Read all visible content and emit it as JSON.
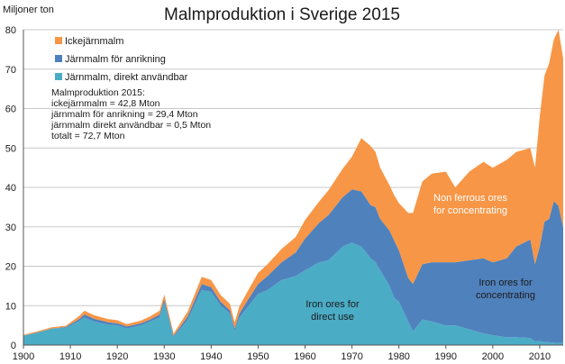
{
  "colors": {
    "non_ferrous": "#F79646",
    "iron_concentrating": "#4F81BD",
    "iron_direct": "#4BACC6"
  },
  "summary_lines": [
    "Malmproduktion 2015:",
    "ickejärnmalm = 42,8 Mton",
    "järnmalm för anrikning = 29,4 Mton",
    "järnmalm direkt användbar = 0,5 Mton",
    "totalt = 72,7 Mton"
  ],
  "chart_data": {
    "type": "area",
    "stacked": true,
    "title": "Malmproduktion i Sverige 2015",
    "ylabel": "Miljoner ton",
    "xlabel": "",
    "xlim": [
      1900,
      2015
    ],
    "ylim": [
      0,
      80
    ],
    "x_ticks": [
      1900,
      1910,
      1920,
      1930,
      1940,
      1950,
      1960,
      1970,
      1980,
      1990,
      2000,
      2010
    ],
    "y_ticks": [
      0,
      10,
      20,
      30,
      40,
      50,
      60,
      70,
      80
    ],
    "grid": "horizontal",
    "legend_position": "top-left",
    "x": [
      1900,
      1903,
      1906,
      1909,
      1912,
      1913,
      1915,
      1918,
      1920,
      1922,
      1925,
      1927,
      1929,
      1930,
      1932,
      1935,
      1938,
      1940,
      1942,
      1944,
      1945,
      1946,
      1948,
      1950,
      1952,
      1955,
      1958,
      1960,
      1963,
      1965,
      1968,
      1970,
      1972,
      1974,
      1975,
      1976,
      1978,
      1979,
      1980,
      1982,
      1983,
      1985,
      1987,
      1990,
      1992,
      1995,
      1998,
      2000,
      2003,
      2005,
      2008,
      2009,
      2010,
      2011,
      2012,
      2013,
      2014,
      2015
    ],
    "series": [
      {
        "name": "Järnmalm, direkt användbar",
        "annotation": [
          "Iron ores for",
          "direct use"
        ],
        "values": [
          2.4,
          3.2,
          4.2,
          4.4,
          6.2,
          7.0,
          6.0,
          5.2,
          5.0,
          4.2,
          5.0,
          6.0,
          7.0,
          10.8,
          2.0,
          6.5,
          14.0,
          13.5,
          10.0,
          8.0,
          3.5,
          7.0,
          10.0,
          13.0,
          14.0,
          16.5,
          17.5,
          19.0,
          21.0,
          21.5,
          25.0,
          26.0,
          25.0,
          22.0,
          21.0,
          19.0,
          15.0,
          12.0,
          11.0,
          6.0,
          3.5,
          6.5,
          6.0,
          5.0,
          5.0,
          4.0,
          3.0,
          2.5,
          2.0,
          2.0,
          1.8,
          1.0,
          1.0,
          0.8,
          0.7,
          0.6,
          0.5,
          0.5
        ]
      },
      {
        "name": "Järnmalm för anrikning",
        "annotation": [
          "Iron ores for",
          "concentrating"
        ],
        "values": [
          0,
          0,
          0,
          0.2,
          0.5,
          0.8,
          0.7,
          0.6,
          0.5,
          0.5,
          0.5,
          0.5,
          0.7,
          0.8,
          0.3,
          0.8,
          1.5,
          1.2,
          1.0,
          0.8,
          0.7,
          1.0,
          1.8,
          2.5,
          3.5,
          4.5,
          6.0,
          8.0,
          10.0,
          11.5,
          12.5,
          13.5,
          14.0,
          13.5,
          14.0,
          13.0,
          14.0,
          14.5,
          13.0,
          11.0,
          12.0,
          14.0,
          15.0,
          16.0,
          16.0,
          17.5,
          19.0,
          18.5,
          20.0,
          23.0,
          25.0,
          19.5,
          24.0,
          30.5,
          31.3,
          35.9,
          34.8,
          29.4
        ]
      },
      {
        "name": "Ickejärnmalm",
        "annotation": [
          "Non ferrous ores",
          "for concentrating"
        ],
        "values": [
          0.2,
          0.3,
          0.3,
          0.3,
          0.8,
          0.9,
          0.9,
          0.8,
          0.8,
          0.6,
          0.7,
          0.8,
          1.0,
          1.2,
          0.6,
          1.2,
          1.8,
          1.8,
          1.7,
          1.6,
          1.6,
          1.8,
          2.3,
          2.8,
          3.0,
          3.4,
          3.9,
          4.7,
          5.4,
          6.3,
          7.2,
          8.3,
          13.5,
          15.0,
          14.0,
          13.0,
          11.5,
          11.5,
          12.0,
          16.5,
          18.0,
          21.0,
          22.5,
          23.0,
          19.0,
          22.5,
          24.5,
          24.0,
          25.0,
          24.0,
          23.2,
          24.5,
          33.0,
          37.0,
          39.5,
          41.0,
          44.7,
          42.8
        ]
      }
    ]
  }
}
